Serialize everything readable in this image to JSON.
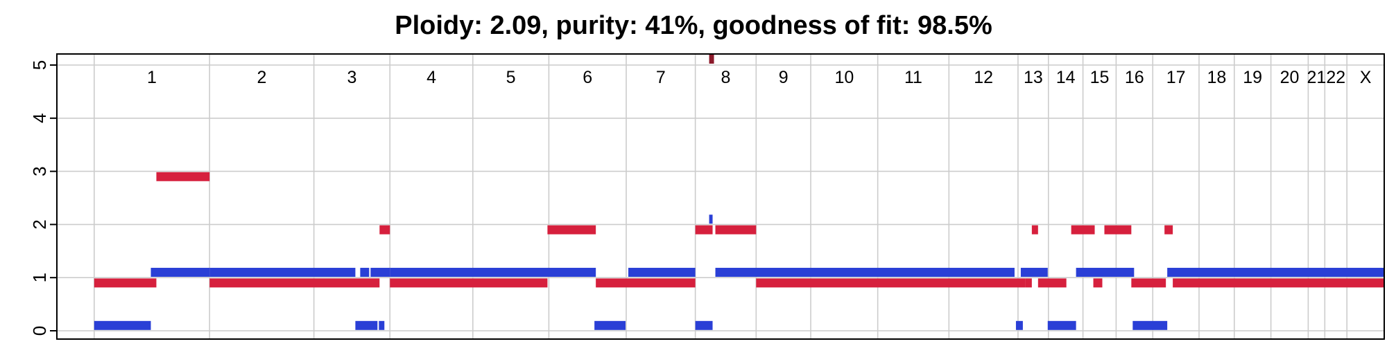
{
  "chart_data": {
    "type": "segment",
    "title": "Ploidy: 2.09, purity: 41%, goodness of fit: 98.5%",
    "xlabel": "",
    "ylabel": "",
    "ylim": [
      0,
      5
    ],
    "y_ticks": [
      "0",
      "1",
      "2",
      "3",
      "4",
      "5"
    ],
    "grid": true,
    "x_range": [
      -54,
      1867
    ],
    "colors": {
      "major": "#d6203d",
      "minor": "#2a3fd6",
      "clipped": "#8b1a2b",
      "grid": "#cccccc"
    },
    "chromosomes": [
      {
        "name": "1",
        "start": 0,
        "end": 167
      },
      {
        "name": "2",
        "start": 167,
        "end": 318
      },
      {
        "name": "3",
        "start": 318,
        "end": 428
      },
      {
        "name": "4",
        "start": 428,
        "end": 548
      },
      {
        "name": "5",
        "start": 548,
        "end": 658
      },
      {
        "name": "6",
        "start": 658,
        "end": 770
      },
      {
        "name": "7",
        "start": 770,
        "end": 870
      },
      {
        "name": "8",
        "start": 870,
        "end": 958
      },
      {
        "name": "9",
        "start": 958,
        "end": 1037
      },
      {
        "name": "10",
        "start": 1037,
        "end": 1134
      },
      {
        "name": "11",
        "start": 1134,
        "end": 1237
      },
      {
        "name": "12",
        "start": 1237,
        "end": 1337
      },
      {
        "name": "13",
        "start": 1337,
        "end": 1381
      },
      {
        "name": "14",
        "start": 1381,
        "end": 1431
      },
      {
        "name": "15",
        "start": 1431,
        "end": 1479
      },
      {
        "name": "16",
        "start": 1479,
        "end": 1532
      },
      {
        "name": "17",
        "start": 1532,
        "end": 1599
      },
      {
        "name": "18",
        "start": 1599,
        "end": 1650
      },
      {
        "name": "19",
        "start": 1650,
        "end": 1703
      },
      {
        "name": "20",
        "start": 1703,
        "end": 1757
      },
      {
        "name": "21",
        "start": 1757,
        "end": 1781
      },
      {
        "name": "22",
        "start": 1781,
        "end": 1813
      },
      {
        "name": "X",
        "start": 1813,
        "end": 1867
      }
    ],
    "series": [
      {
        "name": "major",
        "color": "#d6203d",
        "segments": [
          [
            0,
            90,
            0.9
          ],
          [
            90,
            167,
            2.9
          ],
          [
            167,
            413,
            0.9
          ],
          [
            413,
            428,
            1.9
          ],
          [
            428,
            656,
            0.9
          ],
          [
            656,
            726,
            1.9
          ],
          [
            726,
            870,
            0.9
          ],
          [
            870,
            895,
            1.9
          ],
          [
            899,
            958,
            1.9
          ],
          [
            958,
            1348,
            0.9
          ],
          [
            1348,
            1357,
            0.9
          ],
          [
            1357,
            1366,
            1.9
          ],
          [
            1366,
            1407,
            0.9
          ],
          [
            1414,
            1448,
            1.9
          ],
          [
            1446,
            1459,
            0.9
          ],
          [
            1462,
            1501,
            1.9
          ],
          [
            1501,
            1551,
            0.9
          ],
          [
            1549,
            1561,
            1.9
          ],
          [
            1561,
            1867,
            0.9
          ]
        ]
      },
      {
        "name": "minor",
        "color": "#2a3fd6",
        "segments": [
          [
            0,
            82,
            0.1
          ],
          [
            82,
            167,
            1.1
          ],
          [
            167,
            378,
            1.1
          ],
          [
            378,
            410,
            0.1
          ],
          [
            385,
            398,
            1.1
          ],
          [
            412,
            420,
            0.1
          ],
          [
            400,
            428,
            1.1
          ],
          [
            428,
            726,
            1.1
          ],
          [
            724,
            769,
            0.1
          ],
          [
            773,
            870,
            1.1
          ],
          [
            870,
            895,
            0.1
          ],
          [
            890,
            895,
            2.1
          ],
          [
            899,
            1332,
            1.1
          ],
          [
            1334,
            1344,
            0.1
          ],
          [
            1341,
            1380,
            1.1
          ],
          [
            1380,
            1421,
            0.1
          ],
          [
            1421,
            1505,
            1.1
          ],
          [
            1503,
            1553,
            0.1
          ],
          [
            1553,
            1867,
            1.1
          ]
        ]
      }
    ],
    "clipped_segments": [
      {
        "x0": 890,
        "x1": 897,
        "value": 5.1
      }
    ]
  }
}
